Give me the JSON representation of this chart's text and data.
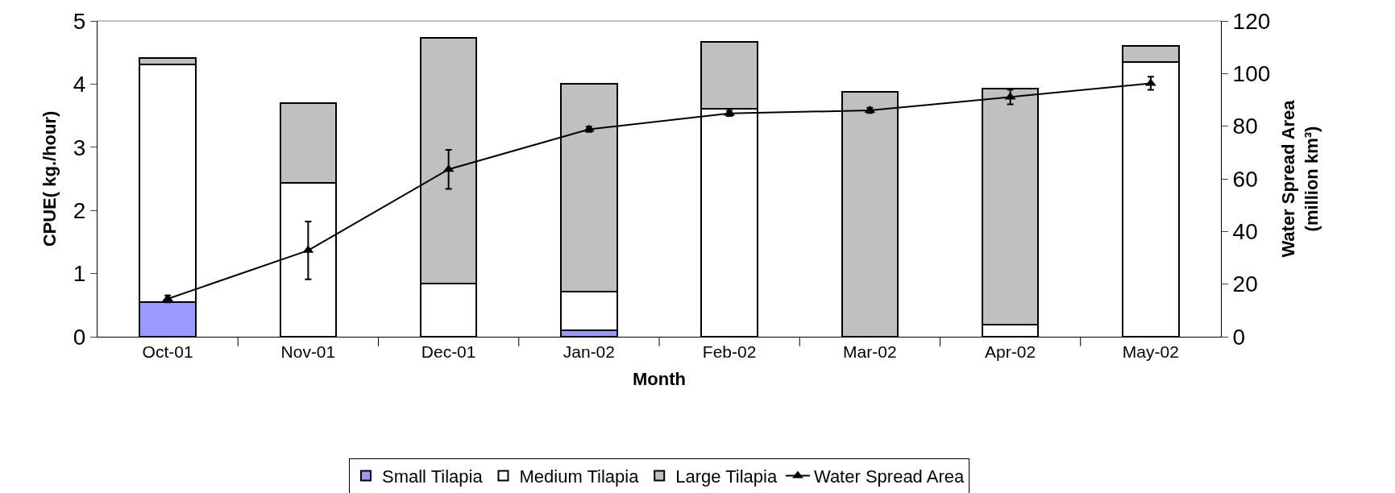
{
  "chart_data": {
    "type": "bar",
    "stacked": true,
    "xlabel": "Month",
    "ylabel": "CPUE( kg./hour)",
    "y2label": "Water Spread Area (million km³)",
    "categories": [
      "Oct-01",
      "Nov-01",
      "Dec-01",
      "Jan-02",
      "Feb-02",
      "Mar-02",
      "Apr-02",
      "May-02"
    ],
    "series": [
      {
        "name": "Small Tilapia",
        "color": "#9999ff",
        "values": [
          0.55,
          0,
          0,
          0.1,
          0,
          0,
          0,
          0
        ]
      },
      {
        "name": "Medium Tilapia",
        "color": "#ffffff",
        "values": [
          3.76,
          2.44,
          0.84,
          0.61,
          3.61,
          0,
          0.19,
          4.35
        ]
      },
      {
        "name": "Large Tilapia",
        "color": "#c0c0c0",
        "values": [
          0.1,
          1.26,
          3.89,
          3.3,
          1.06,
          3.88,
          3.74,
          0.25
        ]
      },
      {
        "name": "Water Spread Area",
        "type": "line",
        "axis": "y2",
        "color": "#000000",
        "marker": "triangle",
        "values": [
          14.4,
          32.8,
          63.6,
          78.8,
          84.9,
          86.0,
          91.1,
          96.3
        ],
        "errors": [
          1.3,
          11,
          7.4,
          1,
          1,
          1,
          2.8,
          2.5
        ]
      }
    ],
    "ylim": [
      0,
      5
    ],
    "yticks": [
      0,
      1,
      2,
      3,
      4,
      5
    ],
    "y2lim": [
      0,
      120
    ],
    "y2ticks": [
      0,
      20,
      40,
      60,
      80,
      100,
      120
    ],
    "legend": "bottom"
  }
}
